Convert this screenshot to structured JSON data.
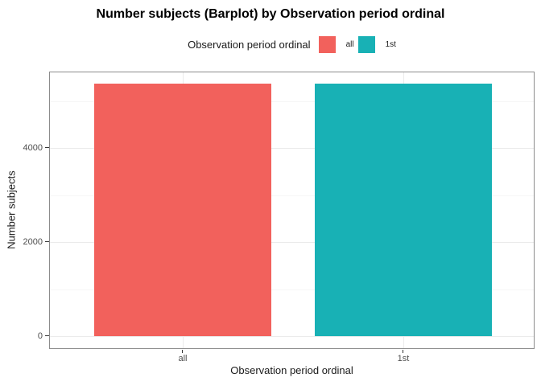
{
  "chart_data": {
    "type": "bar",
    "title": "Number subjects (Barplot) by Observation period ordinal",
    "xlabel": "Observation period ordinal",
    "ylabel": "Number subjects",
    "categories": [
      "all",
      "1st"
    ],
    "series": [
      {
        "name": "Number subjects",
        "values": [
          5370,
          5370
        ]
      }
    ],
    "bar_colors": [
      "#F2615C",
      "#18B1B5"
    ],
    "ylim": [
      0,
      5620
    ],
    "yticks_major": [
      0,
      2000,
      4000
    ],
    "yticks_minor": [
      1000,
      3000,
      5000
    ],
    "grid": "horizontal major and minor gridlines, vertical major at category centers, light gray on white",
    "legend": {
      "position": "top-center",
      "title": "Observation period ordinal",
      "entries": [
        {
          "label": "all",
          "color": "#F2615C"
        },
        {
          "label": "1st",
          "color": "#18B1B5"
        }
      ]
    }
  },
  "colors": {
    "background": "#FFFFFF",
    "panel_border": "#8C8C8C",
    "grid_major": "#EBEBEB",
    "grid_minor": "#F6F6F6",
    "tick_mark": "#333333",
    "tick_label": "#4D4D4D",
    "axis_title": "#1A1A1A",
    "title": "#000000"
  }
}
